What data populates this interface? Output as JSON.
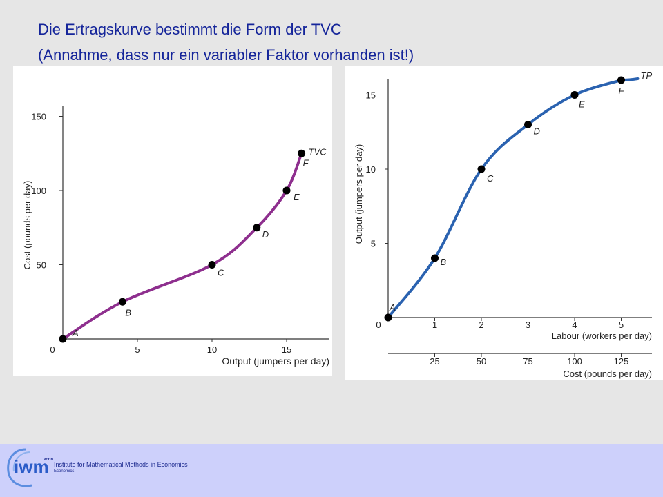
{
  "slide": {
    "title_line1": "Die Ertragskurve bestimmt die Form der TVC",
    "title_line2": "(Annahme, dass nur ein variabler Faktor vorhanden ist!)"
  },
  "footer": {
    "institute": "Institute for Mathematical Methods in Economics",
    "subtext": "Economics",
    "logo_text": "iwm",
    "logo_super": "econ"
  },
  "chart_data": [
    {
      "type": "line",
      "ylabel": "Cost (pounds per day)",
      "xlabel": "Output (jumpers per day)",
      "xlim": [
        0,
        18
      ],
      "ylim": [
        0,
        150
      ],
      "xticks": [
        "0",
        "5",
        "10",
        "15"
      ],
      "yticks": [
        "50",
        "100",
        "150"
      ],
      "series_label": "TVC",
      "line_color": "#8e2f8e",
      "points": [
        {
          "label": "A",
          "x": 0,
          "y": 0
        },
        {
          "label": "B",
          "x": 4,
          "y": 25
        },
        {
          "label": "C",
          "x": 10,
          "y": 50
        },
        {
          "label": "D",
          "x": 13,
          "y": 75
        },
        {
          "label": "E",
          "x": 15,
          "y": 100
        },
        {
          "label": "F",
          "x": 16,
          "y": 125
        }
      ]
    },
    {
      "type": "line",
      "ylabel": "Output (jumpers per day)",
      "xlabel": "Labour (workers per day)",
      "xlabel2": "Cost (pounds per day)",
      "xlim": [
        0,
        5.6
      ],
      "ylim": [
        0,
        16
      ],
      "xticks": [
        "0",
        "1",
        "2",
        "3",
        "4",
        "5"
      ],
      "xticks2": [
        "25",
        "50",
        "75",
        "100",
        "125"
      ],
      "yticks": [
        "5",
        "10",
        "15"
      ],
      "series_label": "TP",
      "line_color": "#2a62b0",
      "points": [
        {
          "label": "A",
          "x": 0,
          "y": 0
        },
        {
          "label": "B",
          "x": 1,
          "y": 4
        },
        {
          "label": "C",
          "x": 2,
          "y": 10
        },
        {
          "label": "D",
          "x": 3,
          "y": 13
        },
        {
          "label": "E",
          "x": 4,
          "y": 15
        },
        {
          "label": "F",
          "x": 5,
          "y": 16
        }
      ]
    }
  ]
}
